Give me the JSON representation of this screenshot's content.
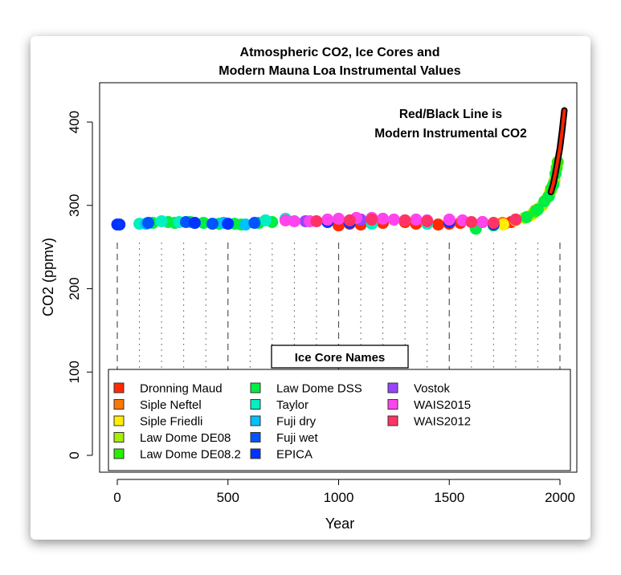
{
  "chart_data": {
    "type": "scatter",
    "title": [
      "Atmospheric CO2, Ice Cores and",
      "Modern Mauna Loa Instrumental Values"
    ],
    "xlabel": "Year",
    "ylabel": "CO2 (ppmv)",
    "xlim": [
      0,
      2000
    ],
    "ylim": [
      0,
      400
    ],
    "xticks": [
      "0",
      "500",
      "1000",
      "1500",
      "2000"
    ],
    "yticks": [
      "0",
      "100",
      "200",
      "300",
      "400"
    ],
    "grid": "vertical dashed lines every 100 years",
    "annotation": [
      "Red/Black Line is",
      "Modern Instrumental CO2"
    ],
    "legend": {
      "title": "Ice Core Names",
      "placement": "bottom"
    },
    "series": [
      {
        "name": "Dronning Maud",
        "color": "#ff2a00",
        "points": [
          [
            1000,
            276
          ],
          [
            1050,
            278
          ],
          [
            1100,
            277
          ],
          [
            1200,
            279
          ],
          [
            1300,
            280
          ],
          [
            1350,
            278
          ],
          [
            1400,
            279
          ],
          [
            1450,
            277
          ],
          [
            1500,
            278
          ],
          [
            1550,
            279
          ],
          [
            1650,
            280
          ],
          [
            1750,
            278
          ],
          [
            1780,
            280
          ]
        ]
      },
      {
        "name": "Siple Neftel",
        "color": "#ff7700",
        "points": [
          [
            1740,
            279
          ],
          [
            1890,
            294
          ]
        ]
      },
      {
        "name": "Siple Friedli",
        "color": "#ffee00",
        "points": [
          [
            1744,
            277
          ],
          [
            1800,
            282
          ],
          [
            1870,
            288
          ],
          [
            1900,
            296
          ],
          [
            1953,
            315
          ]
        ]
      },
      {
        "name": "Law Dome DE08",
        "color": "#a8ee00",
        "points": [
          [
            1840,
            285
          ],
          [
            1880,
            291
          ],
          [
            1920,
            300
          ],
          [
            1945,
            310
          ],
          [
            1960,
            318
          ],
          [
            1975,
            330
          ]
        ]
      },
      {
        "name": "Law Dome DE08.2",
        "color": "#2aee00",
        "points": [
          [
            1890,
            293
          ],
          [
            1960,
            320
          ],
          [
            1985,
            345
          ],
          [
            1990,
            352
          ]
        ]
      },
      {
        "name": "Law Dome DSS",
        "color": "#00ee44",
        "points": [
          [
            160,
            279
          ],
          [
            230,
            280
          ],
          [
            260,
            279
          ],
          [
            330,
            280
          ],
          [
            390,
            279
          ],
          [
            460,
            278
          ],
          [
            530,
            278
          ],
          [
            560,
            277
          ],
          [
            640,
            279
          ],
          [
            700,
            280
          ],
          [
            1620,
            272
          ],
          [
            1700,
            276
          ],
          [
            1800,
            283
          ],
          [
            1850,
            286
          ],
          [
            1900,
            295
          ],
          [
            1930,
            305
          ],
          [
            1950,
            311
          ],
          [
            1970,
            325
          ],
          [
            1980,
            338
          ]
        ]
      },
      {
        "name": "Taylor",
        "color": "#00f0c0",
        "points": [
          [
            100,
            278
          ],
          [
            200,
            281
          ],
          [
            280,
            280
          ],
          [
            670,
            282
          ],
          [
            760,
            284
          ],
          [
            1150,
            278
          ],
          [
            1400,
            278
          ]
        ]
      },
      {
        "name": "Fuji dry",
        "color": "#00c0ff",
        "points": [
          [
            130,
            278
          ],
          [
            480,
            279
          ],
          [
            580,
            277
          ]
        ]
      },
      {
        "name": "Fuji wet",
        "color": "#0055ff",
        "points": [
          [
            140,
            279
          ],
          [
            310,
            280
          ],
          [
            430,
            278
          ],
          [
            620,
            279
          ]
        ]
      },
      {
        "name": "EPICA",
        "color": "#0033ff",
        "points": [
          [
            0,
            277
          ],
          [
            10,
            277
          ],
          [
            350,
            279
          ],
          [
            500,
            278
          ],
          [
            950,
            280
          ],
          [
            1050,
            279
          ],
          [
            1500,
            280
          ],
          [
            1700,
            277
          ]
        ]
      },
      {
        "name": "Vostok",
        "color": "#9944ff",
        "points": [
          [
            850,
            281
          ],
          [
            1100,
            283
          ]
        ]
      },
      {
        "name": "WAIS2015",
        "color": "#ff44ee",
        "points": [
          [
            760,
            282
          ],
          [
            800,
            281
          ],
          [
            870,
            281
          ],
          [
            950,
            283
          ],
          [
            1000,
            284
          ],
          [
            1080,
            285
          ],
          [
            1150,
            285
          ],
          [
            1200,
            284
          ],
          [
            1250,
            283
          ],
          [
            1300,
            282
          ],
          [
            1350,
            283
          ],
          [
            1400,
            282
          ],
          [
            1500,
            283
          ],
          [
            1560,
            282
          ],
          [
            1650,
            280
          ]
        ]
      },
      {
        "name": "WAIS2012",
        "color": "#ff3366",
        "points": [
          [
            900,
            281
          ],
          [
            1050,
            282
          ],
          [
            1150,
            283
          ],
          [
            1300,
            282
          ],
          [
            1400,
            281
          ],
          [
            1600,
            280
          ],
          [
            1700,
            279
          ],
          [
            1800,
            283
          ]
        ]
      }
    ],
    "instrumental": {
      "color": "#ff2200",
      "outline": "#000000",
      "points": [
        [
          1959,
          316
        ],
        [
          1970,
          326
        ],
        [
          1980,
          339
        ],
        [
          1990,
          354
        ],
        [
          2000,
          369
        ],
        [
          2010,
          390
        ],
        [
          2020,
          414
        ]
      ]
    }
  }
}
